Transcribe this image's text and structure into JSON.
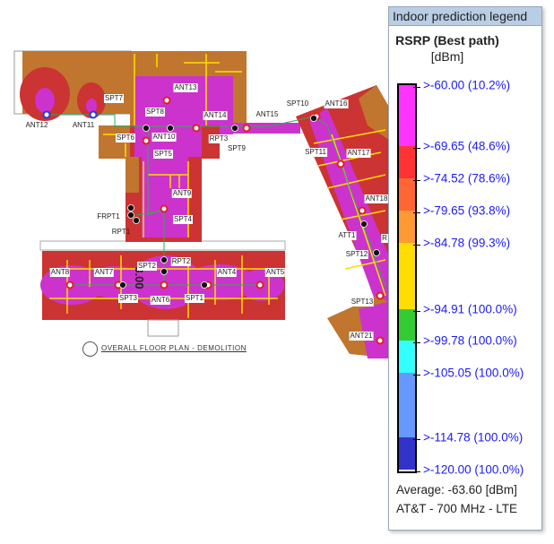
{
  "legend": {
    "title": "Indoor prediction legend",
    "metric": "RSRP (Best path)",
    "unit": "[dBm]",
    "levels": [
      {
        "label": ">-60.00 (10.2%)",
        "color": "#ff33ff"
      },
      {
        "label": ">-69.65 (48.6%)",
        "color": "#ff3333"
      },
      {
        "label": ">-74.52 (78.6%)",
        "color": "#ff6633"
      },
      {
        "label": ">-79.65 (93.8%)",
        "color": "#ff9933"
      },
      {
        "label": ">-84.78 (99.3%)",
        "color": "#ffdd00"
      },
      {
        "label": ">-94.91 (100.0%)",
        "color": "#33cc33"
      },
      {
        "label": ">-99.78 (100.0%)",
        "color": "#33ffff"
      },
      {
        "label": ">-105.05 (100.0%)",
        "color": "#6699ff"
      },
      {
        "label": ">-114.78 (100.0%)",
        "color": "#3333cc"
      },
      {
        "label": ">-120.00 (100.0%)",
        "color": "#3333cc"
      }
    ],
    "average": "Average: -63.60 [dBm]",
    "network": "AT&T - 700 MHz - LTE"
  },
  "floorplan": {
    "caption": "OVERALL FLOOR PLAN - DEMOLITION",
    "room_number": "3.00",
    "labels": [
      "ANT13",
      "SPT7",
      "SPT8",
      "ANT14",
      "ANT15",
      "SPT10",
      "ANT16",
      "ANT12",
      "ANT11",
      "SPT6",
      "ANT10",
      "RPT3",
      "SPT9",
      "SPT5",
      "SPT11",
      "ANT17",
      "ANT9",
      "ANT18",
      "FRPT1",
      "SPT4",
      "RPT1",
      "ATT1",
      "R",
      "RPT2",
      "SPT12",
      "SPT2",
      "ANT8",
      "ANT7",
      "ANT4",
      "ANT5",
      "SPT3",
      "ANT6",
      "SPT1",
      "SPT13",
      "ANT21"
    ],
    "colors": {
      "strong": "#cc33cc",
      "good": "#cc3333",
      "fair": "#cc6633",
      "weak": "#b8862a",
      "wall": "#ffdd00",
      "cable": "#33aa55"
    }
  }
}
